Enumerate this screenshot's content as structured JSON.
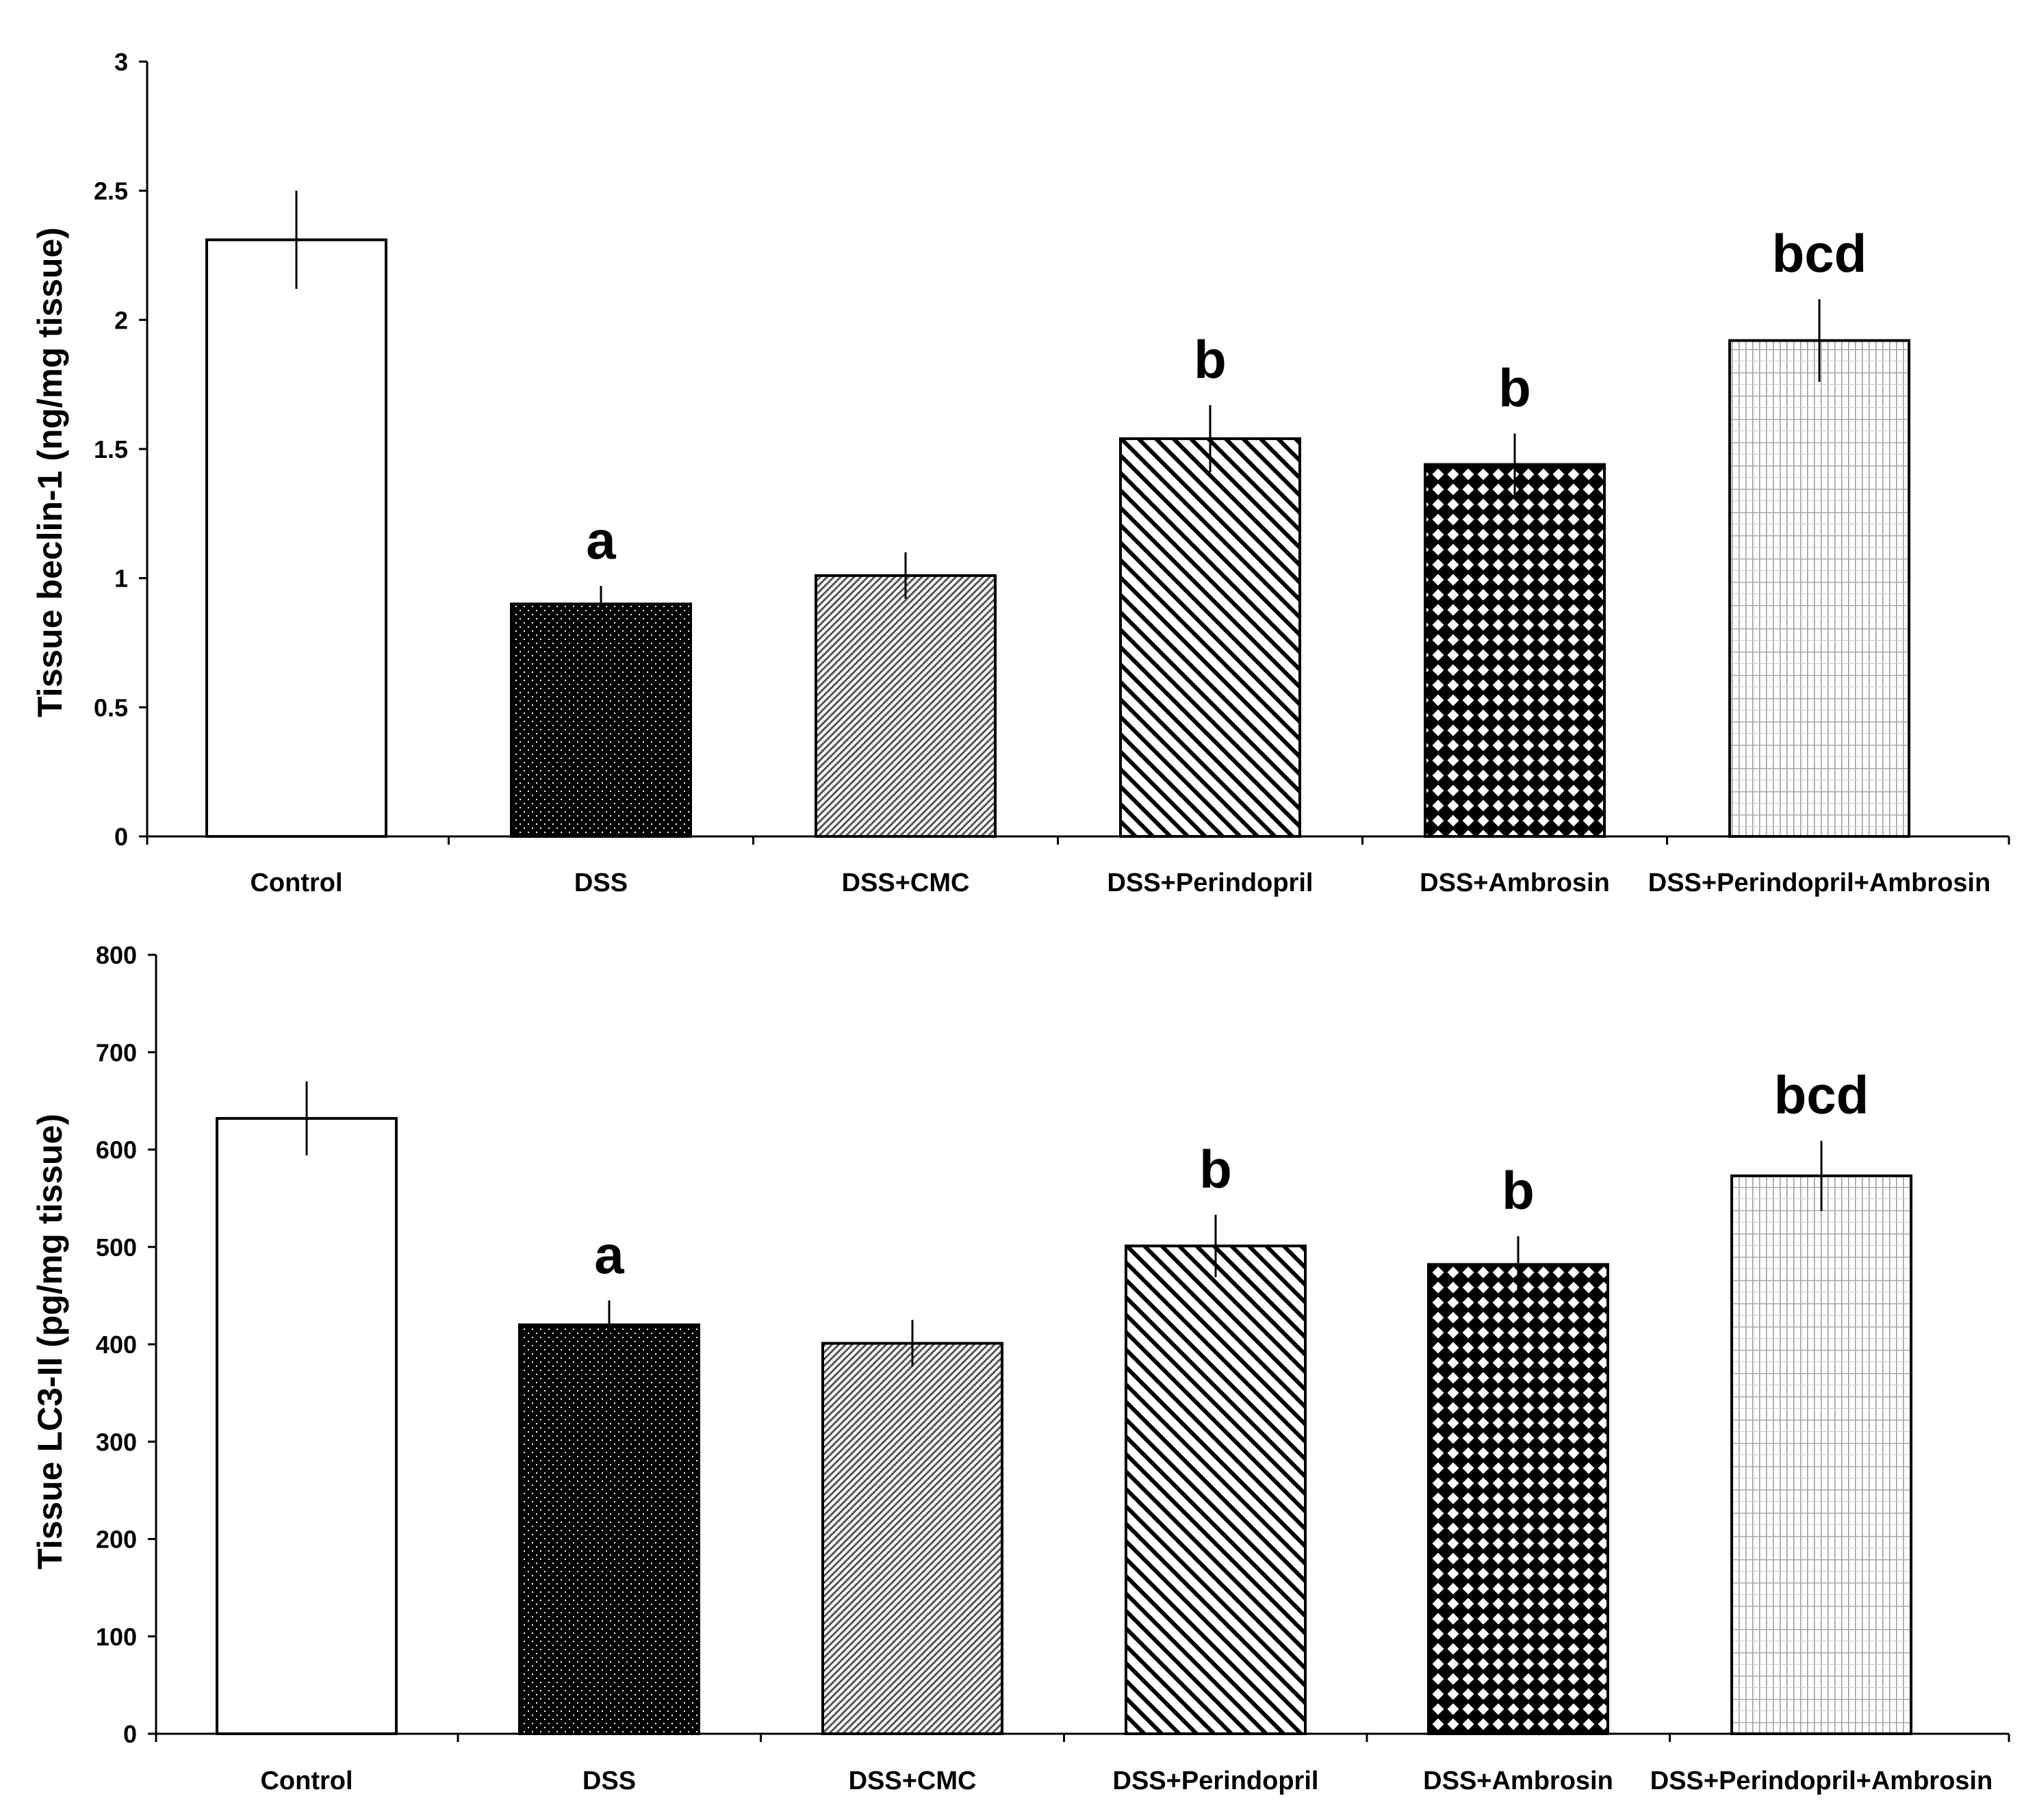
{
  "chart_data": [
    {
      "type": "bar",
      "title": "",
      "xlabel": "",
      "ylabel": "Tissue beclin-1 (ng/mg tissue)",
      "ylim": [
        0,
        3
      ],
      "yticks": [
        "0",
        "0.5",
        "1",
        "1.5",
        "2",
        "2.5",
        "3"
      ],
      "categories": [
        "Control",
        "DSS",
        "DSS+CMC",
        "DSS+Perindopril",
        "DSS+Ambrosin",
        "DSS+Perindopril+Ambrosin"
      ],
      "values": [
        2.31,
        0.9,
        1.01,
        1.54,
        1.44,
        1.92
      ],
      "errors": [
        0.19,
        0.07,
        0.09,
        0.13,
        0.12,
        0.16
      ],
      "significance": [
        "",
        "a",
        "",
        "b",
        "b",
        "bcd"
      ],
      "patterns": [
        "white",
        "dots-black",
        "fine-diagonal",
        "diagonal",
        "checker",
        "grid"
      ]
    },
    {
      "type": "bar",
      "title": "",
      "xlabel": "",
      "ylabel": "Tissue LC3-II (pg/mg tissue)",
      "ylim": [
        0,
        800
      ],
      "yticks": [
        "0",
        "100",
        "200",
        "300",
        "400",
        "500",
        "600",
        "700",
        "800"
      ],
      "categories": [
        "Control",
        "DSS",
        "DSS+CMC",
        "DSS+Perindopril",
        "DSS+Ambrosin",
        "DSS+Perindopril+Ambrosin"
      ],
      "values": [
        632,
        420,
        401,
        501,
        482,
        573
      ],
      "errors": [
        38,
        25,
        24,
        32,
        29,
        36
      ],
      "significance": [
        "",
        "a",
        "",
        "b",
        "b",
        "bcd"
      ],
      "patterns": [
        "white",
        "dots-black",
        "fine-diagonal",
        "diagonal",
        "checker",
        "grid"
      ]
    }
  ]
}
